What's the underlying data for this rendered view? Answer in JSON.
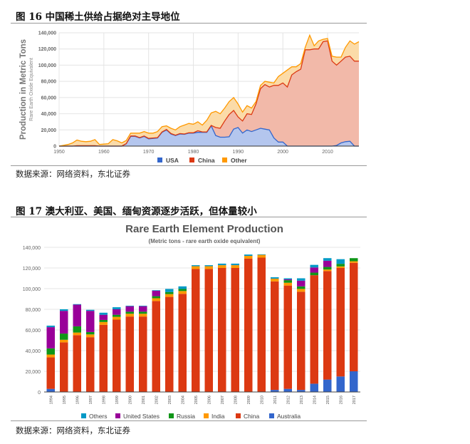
{
  "figure16": {
    "title": "图 16 中国稀土供给占据绝对主导地位",
    "source": "数据来源：网络资料，东北证券"
  },
  "figure17": {
    "title": "图 17 澳大利亚、美国、缅甸资源逐步活跃，但体量较小",
    "source": "数据来源：网络资料，东北证券"
  },
  "chart_data": [
    {
      "type": "area",
      "stacked": true,
      "title": "",
      "ylabel": "Production in Metric Tons",
      "ylabel_sub": "Rare Earth Oxide Equivalent",
      "xlabel": "",
      "ylim": [
        0,
        140000
      ],
      "xlim": [
        1950,
        2017
      ],
      "yticks": [
        "0",
        "20,000",
        "40,000",
        "60,000",
        "80,000",
        "100,000",
        "120,000",
        "140,000"
      ],
      "xticks": [
        "1950",
        "1960",
        "1970",
        "1980",
        "1990",
        "2000",
        "2010"
      ],
      "legend_position": "bottom",
      "x_start": 1950,
      "series": [
        {
          "name": "USA",
          "color": "#3366cc",
          "fill": "#b4c6ee",
          "values": [
            0,
            0,
            0,
            0,
            0,
            0,
            0,
            0,
            0,
            0,
            0,
            0,
            0,
            0,
            0,
            3000,
            12000,
            12000,
            10000,
            12000,
            9000,
            9500,
            10000,
            17000,
            20000,
            15000,
            13000,
            15000,
            14500,
            16000,
            16000,
            17000,
            17000,
            17000,
            25000,
            13000,
            11000,
            11000,
            11500,
            21000,
            23000,
            16000,
            20000,
            18000,
            20000,
            22000,
            21000,
            20000,
            10000,
            5000,
            5000,
            0,
            0,
            0,
            0,
            0,
            0,
            0,
            0,
            0,
            0,
            0,
            800,
            4000,
            5500,
            6000,
            0,
            0
          ]
        },
        {
          "name": "China",
          "color": "#dc3912",
          "fill": "#f2b9a9",
          "values": [
            0,
            0,
            0,
            0,
            500,
            500,
            500,
            500,
            500,
            0,
            0,
            0,
            0,
            0,
            0,
            0,
            500,
            500,
            500,
            500,
            500,
            500,
            500,
            500,
            500,
            500,
            500,
            500,
            500,
            500,
            500,
            2000,
            500,
            500,
            500,
            10000,
            11000,
            20000,
            27500,
            23000,
            13000,
            15000,
            20000,
            21000,
            32000,
            49000,
            55000,
            53000,
            65000,
            70000,
            73000,
            73000,
            88000,
            92000,
            95000,
            119000,
            119000,
            120000,
            120000,
            129000,
            130000,
            105000,
            99200,
            101000,
            104500,
            105000,
            105000,
            105000
          ]
        },
        {
          "name": "Other",
          "color": "#ff9900",
          "fill": "#fbdba8",
          "values": [
            0,
            1000,
            2000,
            4000,
            7000,
            5500,
            5000,
            5500,
            7500,
            2000,
            2500,
            3000,
            8000,
            6500,
            4000,
            4000,
            3500,
            3500,
            5500,
            5500,
            6500,
            6000,
            7500,
            6500,
            4500,
            6500,
            6500,
            8500,
            11000,
            11500,
            10500,
            11000,
            8500,
            14500,
            15500,
            20000,
            18000,
            16000,
            16000,
            16000,
            16000,
            11000,
            10000,
            8000,
            3000,
            4000,
            4000,
            6000,
            3000,
            11000,
            12000,
            21000,
            10000,
            6000,
            7000,
            3000,
            18000,
            4000,
            10000,
            3000,
            3000,
            6000,
            10000,
            5000,
            12000,
            19000,
            21000,
            24000
          ]
        }
      ]
    },
    {
      "type": "bar",
      "stacked": true,
      "title": "Rare Earth Element Production",
      "subtitle": "(Metric tons - rare earth oxide equivalent)",
      "xlabel": "",
      "ylabel": "",
      "ylim": [
        0,
        140000
      ],
      "yticks": [
        "0",
        "20,000",
        "40,000",
        "60,000",
        "80,000",
        "100,000",
        "120,000",
        "140,000"
      ],
      "legend_position": "bottom",
      "categories": [
        "1994",
        "1995",
        "1996",
        "1997",
        "1998",
        "1999",
        "2000",
        "2001",
        "2002",
        "2003",
        "2004",
        "2005",
        "2006",
        "2007",
        "2008",
        "2009",
        "2010",
        "2011",
        "2012",
        "2013",
        "2014",
        "2015",
        "2016",
        "2017"
      ],
      "series": [
        {
          "name": "Australia",
          "color": "#3366cc",
          "values": [
            3000,
            0,
            0,
            0,
            0,
            0,
            0,
            0,
            0,
            0,
            0,
            0,
            0,
            0,
            0,
            0,
            0,
            2000,
            3000,
            2000,
            8000,
            12000,
            15000,
            20000
          ]
        },
        {
          "name": "China",
          "color": "#dc3912",
          "values": [
            30500,
            48000,
            55000,
            53000,
            65000,
            70000,
            73000,
            73000,
            88000,
            92000,
            95000,
            119000,
            119000,
            120000,
            120000,
            129000,
            130000,
            105000,
            100000,
            95000,
            105000,
            105000,
            105000,
            105000
          ]
        },
        {
          "name": "India",
          "color": "#ff9900",
          "values": [
            2700,
            2500,
            2500,
            2700,
            2700,
            2700,
            2700,
            2700,
            2700,
            2700,
            2700,
            2700,
            2700,
            2700,
            2700,
            2700,
            2700,
            2700,
            2700,
            2700,
            0,
            1500,
            1500,
            1500
          ]
        },
        {
          "name": "Russia",
          "color": "#109618",
          "values": [
            6000,
            6000,
            6000,
            2300,
            2000,
            2000,
            2000,
            2000,
            2000,
            2000,
            2000,
            0,
            0,
            0,
            0,
            0,
            0,
            0,
            2500,
            2500,
            2500,
            2500,
            2500,
            3000
          ]
        },
        {
          "name": "United States",
          "color": "#990099",
          "values": [
            20500,
            22000,
            21000,
            20500,
            5000,
            5300,
            5300,
            5300,
            5300,
            0,
            0,
            0,
            0,
            0,
            0,
            0,
            0,
            0,
            800,
            5500,
            5000,
            6000,
            0,
            0
          ]
        },
        {
          "name": "Others",
          "color": "#0099c6",
          "values": [
            1500,
            1500,
            500,
            1000,
            2000,
            2000,
            500,
            500,
            500,
            3000,
            2500,
            1000,
            1000,
            1500,
            1500,
            1300,
            500,
            1300,
            1000,
            2300,
            2500,
            2500,
            4500,
            0
          ]
        }
      ],
      "legend_order": [
        "Others",
        "United States",
        "Russia",
        "India",
        "China",
        "Australia"
      ]
    }
  ]
}
